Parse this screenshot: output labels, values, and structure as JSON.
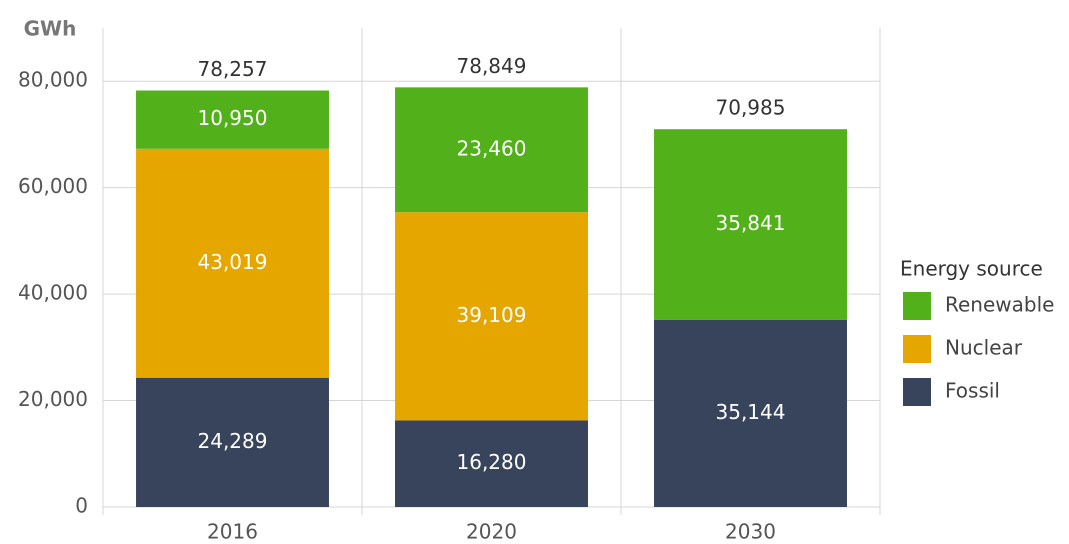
{
  "chart_data": {
    "type": "stacked_bar",
    "y_label": "GWh",
    "categories": [
      "2016",
      "2020",
      "2030"
    ],
    "series": [
      {
        "name": "Fossil",
        "color": "#38435c",
        "values": [
          24289,
          16280,
          35144
        ],
        "value_labels": [
          "24,289",
          "16,280",
          "35,144"
        ]
      },
      {
        "name": "Nuclear",
        "color": "#e5a600",
        "values": [
          43019,
          39109,
          null
        ],
        "value_labels": [
          "43,019",
          "39,109",
          null
        ]
      },
      {
        "name": "Renewable",
        "color": "#52b11a",
        "values": [
          10950,
          23460,
          35841
        ],
        "value_labels": [
          "10,950",
          "23,460",
          "35,841"
        ]
      }
    ],
    "totals": {
      "values": [
        78257,
        78849,
        70985
      ],
      "value_labels": [
        "78,257",
        "78,849",
        "70,985"
      ]
    },
    "ylim": [
      0,
      90000
    ],
    "yticks": [
      0,
      {
        "value": 20000,
        "label": "20,000"
      },
      {
        "value": 40000,
        "label": "40,000"
      },
      {
        "value": 60000,
        "label": "60,000"
      },
      {
        "value": 80000,
        "label": "80,000"
      }
    ],
    "grid": true,
    "legend_title": "Energy source",
    "legend_position": "right"
  }
}
